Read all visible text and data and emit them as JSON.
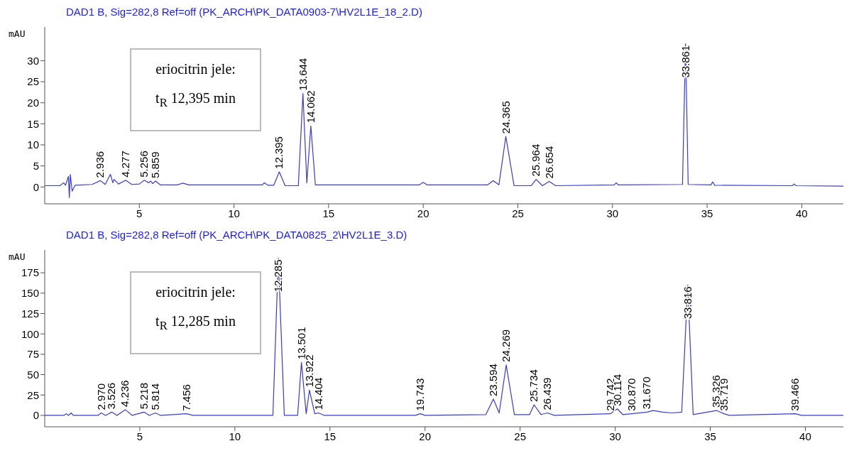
{
  "chart_data": [
    {
      "type": "line",
      "title": "DAD1 B, Sig=282,8 Ref=off (PK_ARCH\\PK_DATA0903-7\\HV2L1E_18_2.D)",
      "ylabel": "mAU",
      "xlim": [
        0,
        42.2
      ],
      "xticks": [
        5,
        10,
        15,
        20,
        25,
        30,
        35,
        40
      ],
      "ylim": [
        -4,
        38
      ],
      "yticks": [
        0,
        5,
        10,
        15,
        20,
        25,
        30
      ],
      "grid": false,
      "legend": false,
      "marker": "none",
      "series": [
        {
          "color": "#3a3ad6",
          "x": [
            0,
            0.8,
            1.0,
            1.1,
            1.25,
            1.3,
            1.35,
            1.45,
            1.6,
            2.5,
            2.936,
            3.2,
            3.468,
            3.6,
            3.662,
            3.9,
            4.277,
            4.6,
            5.0,
            5.256,
            5.5,
            5.6,
            5.7,
            5.859,
            6.1,
            7.0,
            7.3,
            7.6,
            10.0,
            11.5,
            11.6,
            11.8,
            12.1,
            12.395,
            12.7,
            13.4,
            13.644,
            13.85,
            14.062,
            14.3,
            19.8,
            20.0,
            20.2,
            21.0,
            23.4,
            23.7,
            24.0,
            24.365,
            24.8,
            25.7,
            25.964,
            26.3,
            26.654,
            27.0,
            30.1,
            30.2,
            30.3,
            33.7,
            33.861,
            34.0,
            35.2,
            35.3,
            35.4,
            39.5,
            39.6,
            39.7,
            42.2
          ],
          "values": [
            0.3,
            0.3,
            1,
            0.4,
            2.5,
            -2.5,
            3,
            -1,
            0.4,
            0.6,
            1.5,
            0.6,
            3,
            1,
            1.8,
            0.7,
            1.6,
            0.6,
            0.7,
            1.6,
            1.0,
            1.4,
            0.8,
            1.4,
            0.5,
            0.5,
            0.9,
            0.5,
            0.5,
            0.5,
            1,
            0.4,
            0.4,
            3.6,
            0.3,
            0.3,
            22.2,
            1,
            14.5,
            0.5,
            0.5,
            1.1,
            0.5,
            0.5,
            0.5,
            1.5,
            0.5,
            12,
            0.3,
            0.3,
            1.8,
            0.3,
            1.3,
            0.3,
            0.5,
            1.0,
            0.5,
            0.6,
            34,
            0.6,
            0.5,
            1.2,
            0.4,
            0.3,
            0.7,
            0.3,
            0.2
          ]
        }
      ],
      "annotations": [
        "eriocitrin jele:",
        "t$_{R}$ 12,395 min",
        {
          "text": "2.936",
          "x": 2.936,
          "y": 1.5
        },
        {
          "text": "4.277",
          "x": 4.277,
          "y": 1.6
        },
        {
          "text": "5.256",
          "x": 5.256,
          "y": 1.6
        },
        {
          "text": "5.859",
          "x": 5.859,
          "y": 1.4
        },
        {
          "text": "12.395",
          "x": 12.395,
          "y": 3.6
        },
        {
          "text": "13.644",
          "x": 13.644,
          "y": 22.2
        },
        {
          "text": "14.062",
          "x": 14.062,
          "y": 14.5
        },
        {
          "text": "24.365",
          "x": 24.365,
          "y": 12
        },
        {
          "text": "25.964",
          "x": 25.964,
          "y": 1.8
        },
        {
          "text": "26.654",
          "x": 26.654,
          "y": 1.3
        },
        {
          "text": "33.861",
          "x": 33.861,
          "y": 34
        }
      ]
    },
    {
      "type": "line",
      "title": "DAD1 B, Sig=282,8 Ref=off (PK_ARCH\\PK_DATA0825_2\\HV2L1E_3.D)",
      "ylabel": "mAU",
      "xlim": [
        0,
        42
      ],
      "xticks": [
        5,
        10,
        15,
        20,
        25,
        30,
        35,
        40
      ],
      "ylim": [
        -14,
        203
      ],
      "yticks": [
        0,
        25,
        50,
        75,
        100,
        125,
        150,
        175
      ],
      "grid": false,
      "legend": false,
      "marker": "none",
      "series": [
        {
          "color": "#3a3ad6",
          "x": [
            0,
            1.0,
            1.134,
            1.25,
            1.389,
            1.5,
            2.8,
            2.97,
            3.2,
            3.526,
            3.8,
            4.236,
            4.6,
            5.218,
            5.5,
            5.814,
            6.1,
            7.456,
            7.8,
            12.0,
            12.285,
            12.6,
            13.3,
            13.501,
            13.75,
            13.922,
            14.2,
            14.404,
            14.7,
            19.5,
            19.743,
            20.0,
            23.2,
            23.594,
            23.9,
            24.269,
            24.7,
            25.5,
            25.734,
            26.1,
            26.439,
            26.8,
            29.742,
            30.114,
            30.4,
            30.87,
            31.67,
            32.0,
            32.5,
            33.0,
            33.5,
            33.816,
            34.1,
            35.326,
            35.719,
            36.0,
            39.466,
            39.8,
            42.0
          ],
          "values": [
            0,
            0,
            2,
            0,
            3,
            0,
            0,
            3,
            0,
            4,
            0,
            7,
            0,
            4,
            0,
            3,
            0,
            2,
            0,
            0,
            193,
            0,
            0,
            65,
            2,
            31,
            2,
            3,
            0,
            0,
            2,
            0,
            1,
            20,
            3,
            62,
            1,
            1,
            13,
            1,
            3,
            0,
            2,
            8,
            1,
            2,
            4,
            6,
            4,
            3,
            4,
            160,
            1,
            6,
            2,
            0,
            2,
            0,
            0
          ]
        }
      ],
      "annotations": [
        "eriocitrin jele:",
        "t$_{R}$ 12,285 min",
        {
          "text": "2.970",
          "x": 2.97,
          "y": 3
        },
        {
          "text": "3.526",
          "x": 3.526,
          "y": 4
        },
        {
          "text": "4.236",
          "x": 4.236,
          "y": 7
        },
        {
          "text": "5.218",
          "x": 5.218,
          "y": 4
        },
        {
          "text": "5.814",
          "x": 5.814,
          "y": 3
        },
        {
          "text": "7.456",
          "x": 7.456,
          "y": 2
        },
        {
          "text": "12.285",
          "x": 12.285,
          "y": 193
        },
        {
          "text": "13.501",
          "x": 13.501,
          "y": 65
        },
        {
          "text": "13.922",
          "x": 13.922,
          "y": 31
        },
        {
          "text": "14.404",
          "x": 14.404,
          "y": 3
        },
        {
          "text": "19.743",
          "x": 19.743,
          "y": 2
        },
        {
          "text": "23.594",
          "x": 23.594,
          "y": 20
        },
        {
          "text": "24.269",
          "x": 24.269,
          "y": 62
        },
        {
          "text": "25.734",
          "x": 25.734,
          "y": 13
        },
        {
          "text": "26.439",
          "x": 26.439,
          "y": 3
        },
        {
          "text": "29.742",
          "x": 29.742,
          "y": 2
        },
        {
          "text": "30.114",
          "x": 30.114,
          "y": 8
        },
        {
          "text": "30.870",
          "x": 30.87,
          "y": 2
        },
        {
          "text": "31.670",
          "x": 31.67,
          "y": 4
        },
        {
          "text": "33.816",
          "x": 33.816,
          "y": 160
        },
        {
          "text": "35.326",
          "x": 35.326,
          "y": 6
        },
        {
          "text": "35.719",
          "x": 35.719,
          "y": 2
        },
        {
          "text": "39.466",
          "x": 39.466,
          "y": 2
        }
      ]
    }
  ]
}
